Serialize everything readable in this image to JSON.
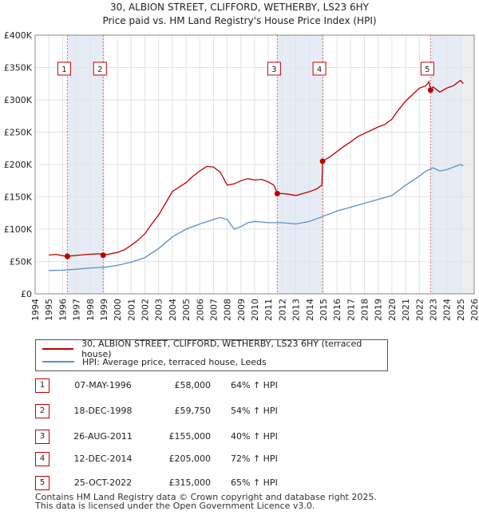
{
  "chart_data": {
    "type": "line",
    "title": "30, ALBION STREET, CLIFFORD, WETHERBY, LS23 6HY",
    "subtitle": "Price paid vs. HM Land Registry's House Price Index (HPI)",
    "xlabel": "",
    "ylabel": "",
    "xlim": [
      1994,
      2026
    ],
    "ylim": [
      0,
      400000
    ],
    "x_ticks": [
      1994,
      1995,
      1996,
      1997,
      1998,
      1999,
      2000,
      2001,
      2002,
      2003,
      2004,
      2005,
      2006,
      2007,
      2008,
      2009,
      2010,
      2011,
      2012,
      2013,
      2014,
      2015,
      2016,
      2017,
      2018,
      2019,
      2020,
      2021,
      2022,
      2023,
      2024,
      2025,
      2026
    ],
    "y_ticks": [
      {
        "value": 0,
        "label": "£0"
      },
      {
        "value": 50000,
        "label": "£50K"
      },
      {
        "value": 100000,
        "label": "£100K"
      },
      {
        "value": 150000,
        "label": "£150K"
      },
      {
        "value": 200000,
        "label": "£200K"
      },
      {
        "value": 250000,
        "label": "£250K"
      },
      {
        "value": 300000,
        "label": "£300K"
      },
      {
        "value": 350000,
        "label": "£350K"
      },
      {
        "value": 400000,
        "label": "£400K"
      }
    ],
    "grid": true,
    "shaded_ranges": [
      [
        1996.35,
        1998.96
      ],
      [
        2011.65,
        2014.95
      ],
      [
        2022.82,
        2025.2
      ]
    ],
    "series": [
      {
        "name": "30, ALBION STREET, CLIFFORD, WETHERBY, LS23 6HY (terraced house)",
        "color": "#c00000",
        "x": [
          1995.0,
          1995.5,
          1996.0,
          1996.35,
          1996.8,
          1997.3,
          1997.8,
          1998.3,
          1998.7,
          1998.96,
          1999.5,
          2000.0,
          2000.5,
          2001.0,
          2001.5,
          2002.0,
          2002.5,
          2003.0,
          2003.5,
          2004.0,
          2004.5,
          2005.0,
          2005.5,
          2006.0,
          2006.5,
          2007.0,
          2007.5,
          2008.0,
          2008.5,
          2009.0,
          2009.5,
          2010.0,
          2010.5,
          2011.0,
          2011.4,
          2011.65,
          2012.0,
          2012.5,
          2013.0,
          2013.5,
          2014.0,
          2014.5,
          2014.9,
          2014.95,
          2015.5,
          2016.0,
          2016.5,
          2017.0,
          2017.5,
          2018.0,
          2018.5,
          2019.0,
          2019.5,
          2020.0,
          2020.5,
          2021.0,
          2021.5,
          2022.0,
          2022.5,
          2022.7,
          2022.82,
          2023.0,
          2023.5,
          2024.0,
          2024.5,
          2025.0,
          2025.2
        ],
        "values": [
          60000,
          61000,
          59000,
          58000,
          59000,
          60000,
          61000,
          61500,
          62000,
          59750,
          62000,
          64000,
          68000,
          75000,
          83000,
          93000,
          108000,
          122000,
          140000,
          158000,
          165000,
          172000,
          182000,
          190000,
          197000,
          196000,
          188000,
          168000,
          170000,
          175000,
          178000,
          176000,
          177000,
          173000,
          168000,
          155000,
          155000,
          154000,
          152000,
          155000,
          158000,
          162000,
          168000,
          205000,
          212000,
          220000,
          228000,
          235000,
          243000,
          248000,
          253000,
          258000,
          262000,
          270000,
          285000,
          298000,
          308000,
          318000,
          322000,
          328000,
          315000,
          320000,
          312000,
          318000,
          322000,
          330000,
          325000
        ]
      },
      {
        "name": "HPI: Average price, terraced house, Leeds",
        "color": "#5b8fc9",
        "x": [
          1995.0,
          1996.0,
          1997.0,
          1998.0,
          1999.0,
          2000.0,
          2001.0,
          2002.0,
          2003.0,
          2004.0,
          2005.0,
          2006.0,
          2007.0,
          2007.5,
          2008.0,
          2008.5,
          2009.0,
          2009.5,
          2010.0,
          2011.0,
          2012.0,
          2013.0,
          2014.0,
          2015.0,
          2016.0,
          2017.0,
          2018.0,
          2019.0,
          2020.0,
          2021.0,
          2022.0,
          2022.5,
          2023.0,
          2023.5,
          2024.0,
          2024.5,
          2025.0,
          2025.2
        ],
        "values": [
          36000,
          36500,
          38000,
          40000,
          41000,
          44000,
          49000,
          56000,
          70000,
          88000,
          100000,
          108000,
          115000,
          118000,
          115000,
          100000,
          104000,
          110000,
          112000,
          110000,
          110000,
          108000,
          112000,
          120000,
          128000,
          134000,
          140000,
          146000,
          152000,
          168000,
          182000,
          190000,
          195000,
          190000,
          192000,
          196000,
          200000,
          198000
        ]
      }
    ],
    "sales": [
      {
        "num": "1",
        "year": 1996.35,
        "value": 58000,
        "date": "07-MAY-1996",
        "price": "£58,000",
        "hpi": "64% ↑ HPI"
      },
      {
        "num": "2",
        "year": 1998.96,
        "value": 59750,
        "date": "18-DEC-1998",
        "price": "£59,750",
        "hpi": "54% ↑ HPI"
      },
      {
        "num": "3",
        "year": 2011.65,
        "value": 155000,
        "date": "26-AUG-2011",
        "price": "£155,000",
        "hpi": "40% ↑ HPI"
      },
      {
        "num": "4",
        "year": 2014.95,
        "value": 205000,
        "date": "12-DEC-2014",
        "price": "£205,000",
        "hpi": "72% ↑ HPI"
      },
      {
        "num": "5",
        "year": 2022.82,
        "value": 315000,
        "date": "25-OCT-2022",
        "price": "£315,000",
        "hpi": "65% ↑ HPI"
      }
    ]
  },
  "legend": {
    "property_label": "30, ALBION STREET, CLIFFORD, WETHERBY, LS23 6HY (terraced house)",
    "hpi_label": "HPI: Average price, terraced house, Leeds",
    "property_color": "#c00000",
    "hpi_color": "#5b8fc9"
  },
  "footer": {
    "line1": "Contains HM Land Registry data © Crown copyright and database right 2025.",
    "line2": "This data is licensed under the Open Government Licence v3.0."
  }
}
